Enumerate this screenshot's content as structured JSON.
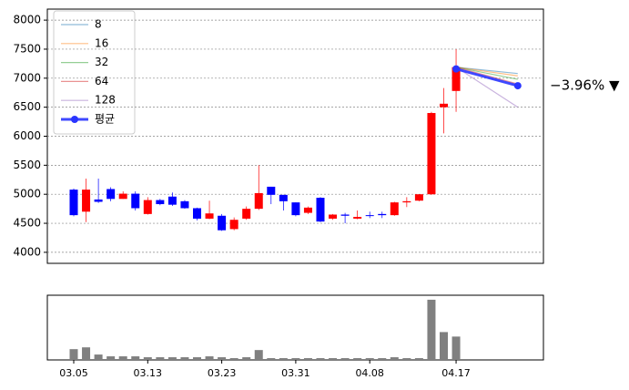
{
  "chart_data": [
    {
      "type": "candlestick",
      "open": [
        5080,
        4700,
        4910,
        5090,
        4920,
        5010,
        4660,
        4900,
        4960,
        4880,
        4760,
        4580,
        4630,
        4400,
        4580,
        4750,
        5130,
        4990,
        4860,
        4680,
        4940,
        4580,
        4650,
        4580,
        4640,
        4660,
        4640,
        4860,
        4890,
        5000,
        6500,
        6780,
        null,
        null,
        null,
        null,
        null
      ],
      "high": [
        5100,
        5270,
        5270,
        5120,
        5050,
        5050,
        4950,
        4920,
        5030,
        4900,
        4770,
        4890,
        4660,
        4600,
        4790,
        5500,
        5130,
        4990,
        4860,
        4790,
        4950,
        4660,
        4680,
        4720,
        4700,
        4700,
        4870,
        4950,
        5000,
        6420,
        6830,
        7500,
        null,
        null,
        null,
        null,
        null
      ],
      "low": [
        4620,
        4520,
        4850,
        4880,
        4920,
        4720,
        4650,
        4810,
        4800,
        4750,
        4550,
        4570,
        4370,
        4380,
        4560,
        4730,
        4830,
        4720,
        4620,
        4660,
        4520,
        4560,
        4500,
        4570,
        4590,
        4590,
        4630,
        4780,
        4880,
        4990,
        6050,
        6420,
        null,
        null,
        null,
        null,
        null
      ],
      "close": [
        4640,
        5080,
        4870,
        4920,
        5010,
        4760,
        4900,
        4830,
        4820,
        4760,
        4580,
        4670,
        4380,
        4560,
        4750,
        5020,
        4990,
        4880,
        4640,
        4770,
        4530,
        4650,
        4630,
        4610,
        4630,
        4640,
        4860,
        4880,
        5000,
        6400,
        6560,
        7190,
        null,
        null,
        null,
        null,
        null
      ],
      "up_color": "#ff0000",
      "down_color": "#0000ff",
      "ylim": [
        3810,
        8190
      ],
      "yticks": [
        4000,
        4500,
        5000,
        5500,
        6000,
        6500,
        7000,
        7500,
        8000
      ],
      "grid": true,
      "legend": "upper left",
      "series": [
        {
          "name": "8",
          "color": "#1f77b4",
          "values": [
            null,
            null,
            null,
            null,
            null,
            null,
            null,
            null,
            null,
            null,
            null,
            null,
            null,
            null,
            null,
            null,
            null,
            null,
            null,
            null,
            null,
            null,
            null,
            null,
            null,
            null,
            null,
            null,
            null,
            null,
            null,
            7190,
            null,
            null,
            null,
            null,
            7080
          ]
        },
        {
          "name": "16",
          "color": "#ff7f0e",
          "values": [
            null,
            null,
            null,
            null,
            null,
            null,
            null,
            null,
            null,
            null,
            null,
            null,
            null,
            null,
            null,
            null,
            null,
            null,
            null,
            null,
            null,
            null,
            null,
            null,
            null,
            null,
            null,
            null,
            null,
            null,
            null,
            7190,
            null,
            null,
            null,
            null,
            7040
          ]
        },
        {
          "name": "32",
          "color": "#2ca02c",
          "values": [
            null,
            null,
            null,
            null,
            null,
            null,
            null,
            null,
            null,
            null,
            null,
            null,
            null,
            null,
            null,
            null,
            null,
            null,
            null,
            null,
            null,
            null,
            null,
            null,
            null,
            null,
            null,
            null,
            null,
            null,
            null,
            7190,
            null,
            null,
            null,
            null,
            6980
          ]
        },
        {
          "name": "64",
          "color": "#d62728",
          "values": [
            null,
            null,
            null,
            null,
            null,
            null,
            null,
            null,
            null,
            null,
            null,
            null,
            null,
            null,
            null,
            null,
            null,
            null,
            null,
            null,
            null,
            null,
            null,
            null,
            null,
            null,
            null,
            null,
            null,
            null,
            null,
            7190,
            null,
            null,
            null,
            null,
            6900
          ]
        },
        {
          "name": "128",
          "color": "#9467bd",
          "values": [
            null,
            null,
            null,
            null,
            null,
            null,
            null,
            null,
            null,
            null,
            null,
            null,
            null,
            null,
            null,
            null,
            null,
            null,
            null,
            null,
            null,
            null,
            null,
            null,
            null,
            null,
            null,
            null,
            null,
            null,
            null,
            7190,
            null,
            null,
            null,
            null,
            6500
          ]
        },
        {
          "name": "평균",
          "color": "#2a35ff",
          "marker": true,
          "values": [
            null,
            null,
            null,
            null,
            null,
            null,
            null,
            null,
            null,
            null,
            null,
            null,
            null,
            null,
            null,
            null,
            null,
            null,
            null,
            null,
            null,
            null,
            null,
            null,
            null,
            null,
            null,
            null,
            null,
            null,
            null,
            7160,
            null,
            null,
            null,
            null,
            6870
          ]
        }
      ],
      "annotation": "−3.96% ▼",
      "annotation_color": "#0000ff"
    },
    {
      "type": "bar",
      "color": "#808080",
      "ylim": [
        0,
        72
      ],
      "categories": [
        "03.05",
        null,
        null,
        null,
        null,
        null,
        "03.13",
        null,
        null,
        null,
        null,
        null,
        "03.23",
        null,
        null,
        null,
        null,
        null,
        "03.31",
        null,
        null,
        null,
        null,
        null,
        "04.08",
        null,
        null,
        null,
        null,
        null,
        null,
        "04.17",
        null,
        null,
        null,
        null,
        null
      ],
      "values": [
        12,
        14,
        6,
        4,
        4,
        4,
        3,
        3,
        3,
        3,
        3,
        4,
        3,
        2,
        3,
        11,
        2,
        2,
        2,
        2,
        2,
        2,
        2,
        2,
        2,
        2,
        3,
        2,
        2,
        67,
        31,
        26,
        null,
        null,
        null,
        null,
        null
      ]
    }
  ]
}
